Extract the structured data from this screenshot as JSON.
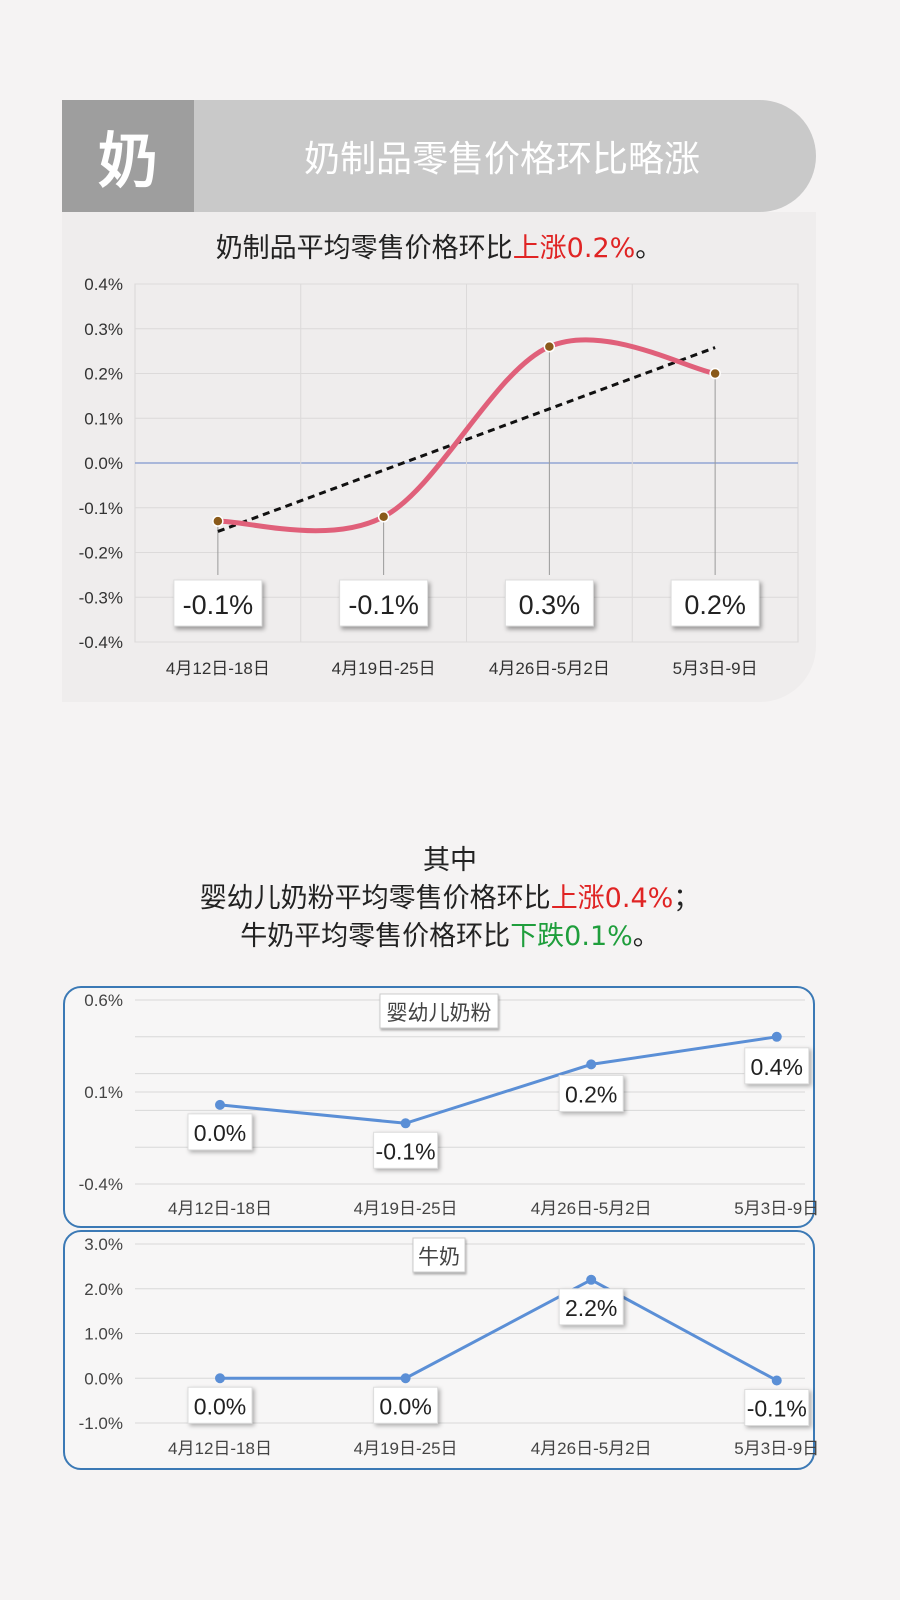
{
  "header": {
    "badge": "奶",
    "title": "奶制品零售价格环比略涨"
  },
  "main_summary": {
    "prefix": "奶制品平均零售价格环比",
    "highlight": "上涨0.2%",
    "suffix": "。"
  },
  "middle_text": {
    "line1": "其中",
    "line2_prefix": "婴幼儿奶粉平均零售价格环比",
    "line2_highlight": "上涨0.4%",
    "line2_suffix": "；",
    "line3_prefix": "牛奶平均零售价格环比",
    "line3_highlight": "下跌0.1%",
    "line3_suffix": "。"
  },
  "colors": {
    "main_line": "#e0607a",
    "trend_line": "#111111",
    "small_line": "#5b8fd6",
    "up": "#e02424",
    "down": "#1f9e3c",
    "panel_border": "#3b79b5"
  },
  "chart_data": [
    {
      "type": "line",
      "categories": [
        "4月12日-18日",
        "4月19日-25日",
        "4月26日-5月2日",
        "5月3日-9日"
      ],
      "series": [
        {
          "values": [
            -0.13,
            -0.12,
            0.26,
            0.2
          ],
          "labels": [
            "-0.1%",
            "-0.1%",
            "0.3%",
            "0.2%"
          ]
        }
      ],
      "trendline": true,
      "smooth": true,
      "ylim": [
        -0.4,
        0.4
      ],
      "yticks": [
        "0.4%",
        "0.3%",
        "0.2%",
        "0.1%",
        "0.0%",
        "-0.1%",
        "-0.2%",
        "-0.3%",
        "-0.4%"
      ],
      "grid": true
    },
    {
      "type": "line",
      "title": "婴幼儿奶粉",
      "categories": [
        "4月12日-18日",
        "4月19日-25日",
        "4月26日-5月2日",
        "5月3日-9日"
      ],
      "series": [
        {
          "values": [
            0.03,
            -0.07,
            0.25,
            0.4
          ],
          "labels": [
            "0.0%",
            "-0.1%",
            "0.2%",
            "0.4%"
          ]
        }
      ],
      "ylim": [
        -0.4,
        0.6
      ],
      "yticks": [
        "0.6%",
        "0.1%",
        "-0.4%"
      ],
      "grid": true
    },
    {
      "type": "line",
      "title": "牛奶",
      "categories": [
        "4月12日-18日",
        "4月19日-25日",
        "4月26日-5月2日",
        "5月3日-9日"
      ],
      "series": [
        {
          "values": [
            0.0,
            0.0,
            2.2,
            -0.05
          ],
          "labels": [
            "0.0%",
            "0.0%",
            "2.2%",
            "-0.1%"
          ]
        }
      ],
      "ylim": [
        -1.0,
        3.0
      ],
      "yticks": [
        "3.0%",
        "2.0%",
        "1.0%",
        "0.0%",
        "-1.0%"
      ],
      "grid": true
    }
  ]
}
